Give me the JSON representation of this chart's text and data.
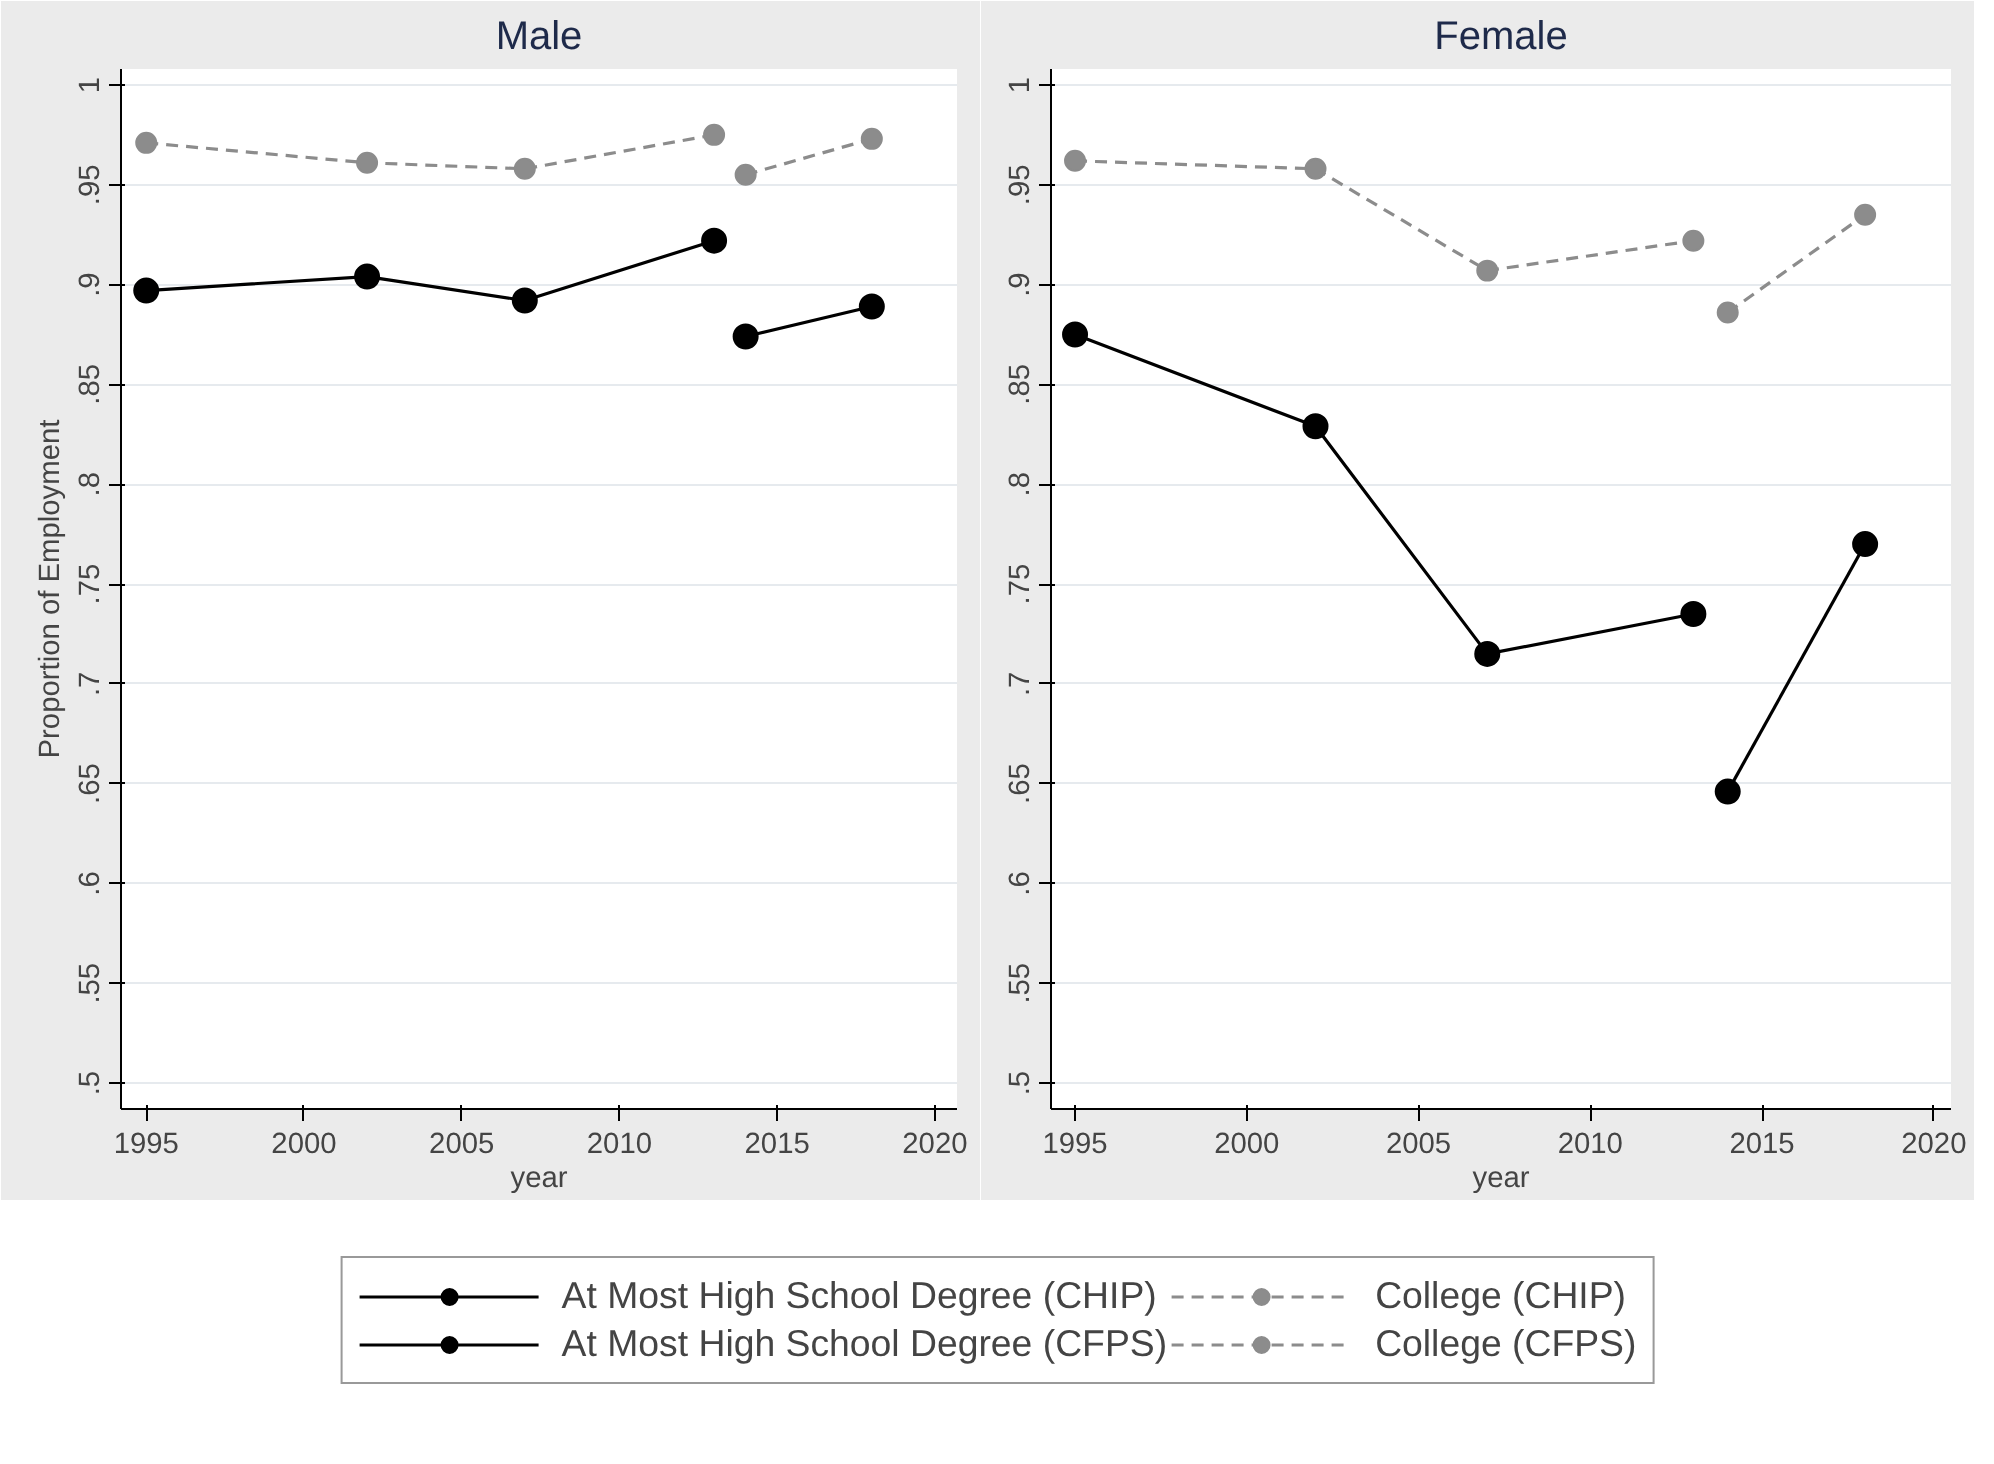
{
  "chart_data": [
    {
      "type": "line",
      "title": "Male",
      "xlabel": "year",
      "ylabel": "Proportion of Employment",
      "xlim": [
        1994.2,
        2020.7
      ],
      "ylim": [
        0.487,
        1.008
      ],
      "xticks": [
        1995,
        2000,
        2005,
        2010,
        2015,
        2020
      ],
      "yticks": [
        {
          "value": 0.5,
          "label": ".5"
        },
        {
          "value": 0.55,
          "label": ".55"
        },
        {
          "value": 0.6,
          "label": ".6"
        },
        {
          "value": 0.65,
          "label": ".65"
        },
        {
          "value": 0.7,
          "label": ".7"
        },
        {
          "value": 0.75,
          "label": ".75"
        },
        {
          "value": 0.8,
          "label": ".8"
        },
        {
          "value": 0.85,
          "label": ".85"
        },
        {
          "value": 0.9,
          "label": ".9"
        },
        {
          "value": 0.95,
          "label": ".95"
        },
        {
          "value": 1,
          "label": "1"
        }
      ],
      "grid": "y",
      "marker": "circle",
      "legend": "bottom",
      "series": [
        {
          "name": "At Most High School Degree (CHIP)",
          "color": "#000000",
          "line_style": "solid",
          "x": [
            1995,
            2002,
            2007,
            2013
          ],
          "values": [
            0.897,
            0.904,
            0.892,
            0.922
          ]
        },
        {
          "name": "At Most High School Degree (CFPS)",
          "color": "#000000",
          "line_style": "solid",
          "x": [
            2014,
            2018
          ],
          "values": [
            0.874,
            0.889
          ]
        },
        {
          "name": "College (CHIP)",
          "color": "#8c8c8c",
          "line_style": "dashed",
          "x": [
            1995,
            2002,
            2007,
            2013
          ],
          "values": [
            0.971,
            0.961,
            0.958,
            0.975
          ]
        },
        {
          "name": "College (CFPS)",
          "color": "#8c8c8c",
          "line_style": "dashed",
          "x": [
            2014,
            2018
          ],
          "values": [
            0.955,
            0.973
          ]
        }
      ]
    },
    {
      "type": "line",
      "title": "Female",
      "xlabel": "year",
      "xlim": [
        1994.3,
        2020.5
      ],
      "ylim": [
        0.487,
        1.008
      ],
      "xticks": [
        1995,
        2000,
        2005,
        2010,
        2015,
        2020
      ],
      "yticks": [
        {
          "value": 0.5,
          "label": ".5"
        },
        {
          "value": 0.55,
          "label": ".55"
        },
        {
          "value": 0.6,
          "label": ".6"
        },
        {
          "value": 0.65,
          "label": ".65"
        },
        {
          "value": 0.7,
          "label": ".7"
        },
        {
          "value": 0.75,
          "label": ".75"
        },
        {
          "value": 0.8,
          "label": ".8"
        },
        {
          "value": 0.85,
          "label": ".85"
        },
        {
          "value": 0.9,
          "label": ".9"
        },
        {
          "value": 0.95,
          "label": ".95"
        },
        {
          "value": 1,
          "label": "1"
        }
      ],
      "grid": "y",
      "marker": "circle",
      "series": [
        {
          "color": "#000000",
          "line_style": "solid",
          "x": [
            1995,
            2002,
            2007,
            2013
          ],
          "values": [
            0.875,
            0.829,
            0.715,
            0.735
          ]
        },
        {
          "color": "#000000",
          "line_style": "solid",
          "x": [
            2014,
            2018
          ],
          "values": [
            0.646,
            0.77
          ]
        },
        {
          "color": "#8c8c8c",
          "line_style": "dashed",
          "x": [
            1995,
            2002,
            2007,
            2013
          ],
          "values": [
            0.962,
            0.958,
            0.907,
            0.922
          ]
        },
        {
          "color": "#8c8c8c",
          "line_style": "dashed",
          "x": [
            2014,
            2018
          ],
          "values": [
            0.886,
            0.935
          ]
        }
      ]
    }
  ]
}
